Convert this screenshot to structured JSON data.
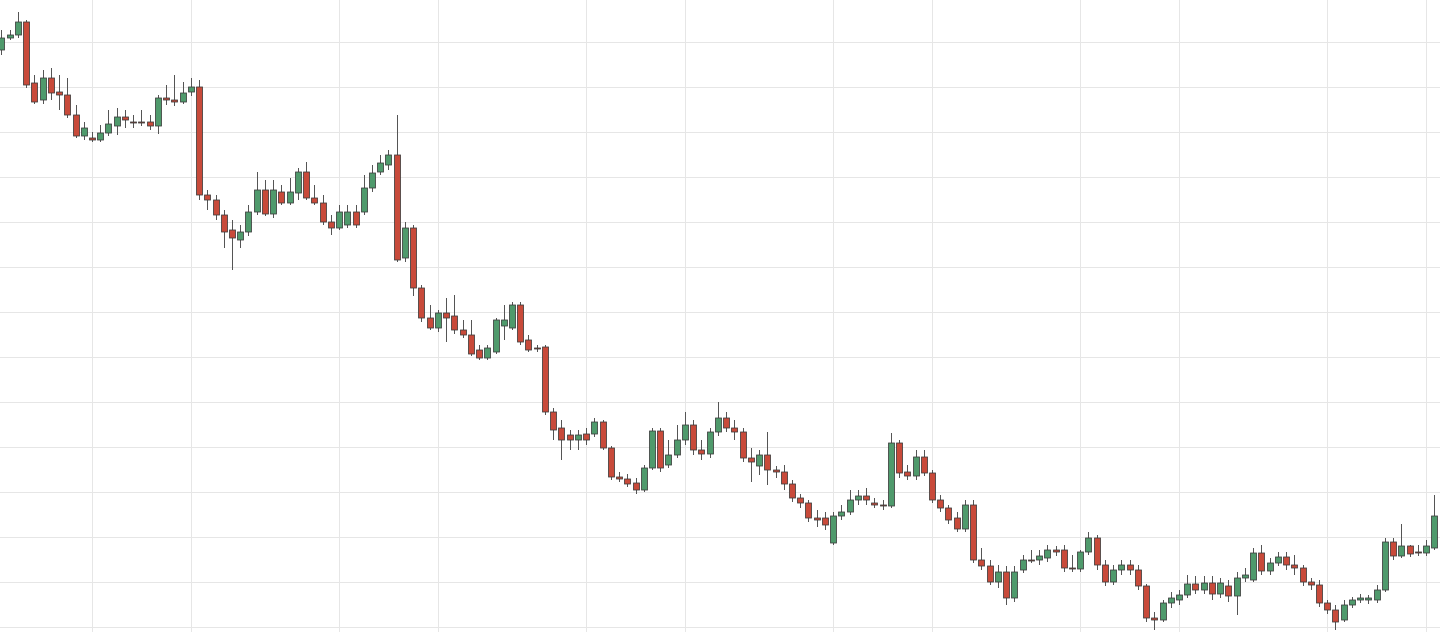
{
  "chart_data": {
    "type": "candlestick",
    "categories": [
      null,
      null,
      null,
      null,
      null,
      null,
      null,
      null,
      null,
      null,
      null,
      null,
      null,
      null,
      null,
      null,
      null,
      null,
      null,
      null,
      null,
      null,
      null,
      null,
      null,
      null,
      null,
      null,
      null,
      null,
      null,
      null,
      null,
      null,
      null,
      null,
      null,
      null,
      null,
      null,
      null,
      null,
      null,
      null,
      null,
      null,
      null,
      null,
      null,
      null,
      null,
      null,
      null,
      null,
      null,
      null,
      null,
      null,
      null,
      null,
      null,
      null,
      null,
      null,
      null,
      null,
      null,
      null,
      null,
      null,
      null,
      null,
      null,
      null,
      null,
      null,
      null,
      null,
      null,
      null,
      null,
      null,
      null,
      null,
      null,
      null,
      null,
      null,
      null,
      null,
      null,
      null,
      null,
      null,
      null,
      null,
      null,
      null,
      null,
      null,
      null,
      null,
      null,
      null,
      null,
      null,
      null,
      null,
      null,
      null,
      null,
      null,
      null,
      null,
      null,
      null,
      null,
      null,
      null,
      null,
      null,
      null,
      null,
      null,
      null,
      null,
      null,
      null,
      null,
      null,
      null,
      null,
      null,
      null,
      null,
      null,
      null,
      null,
      null,
      null,
      null,
      null,
      null,
      null,
      null,
      null,
      null,
      null,
      null,
      null,
      null,
      null,
      null,
      null,
      null,
      null,
      null,
      null,
      null,
      null,
      null,
      null,
      null,
      null,
      null,
      null,
      null,
      null,
      null,
      null,
      null,
      null,
      null,
      null,
      null
    ],
    "open": [
      582,
      594,
      597,
      610,
      549,
      532,
      554,
      540,
      537,
      517,
      496,
      494,
      492,
      499,
      506,
      515,
      510,
      510,
      510,
      506,
      534,
      532,
      530,
      540,
      545,
      437,
      432,
      417,
      402,
      392,
      400,
      420,
      442,
      418,
      440,
      429,
      439,
      460,
      434,
      429,
      410,
      404,
      407,
      420,
      420,
      444,
      460,
      467,
      477,
      374,
      404,
      344,
      314,
      304,
      319,
      316,
      302,
      297,
      282,
      274,
      280,
      306,
      304,
      327,
      292,
      284,
      285,
      220,
      204,
      197,
      192,
      198,
      198,
      210,
      184,
      155,
      153,
      149,
      142,
      164,
      201,
      167,
      177,
      192,
      207,
      182,
      178,
      200,
      214,
      204,
      200,
      174,
      166,
      177,
      162,
      160,
      148,
      134,
      129,
      114,
      114,
      89,
      116,
      120,
      132,
      136,
      129,
      127,
      126,
      189,
      160,
      156,
      175,
      159,
      132,
      124,
      114,
      103,
      127,
      72,
      66,
      50,
      60,
      34,
      62,
      72,
      72,
      74,
      82,
      82,
      64,
      63,
      80,
      94,
      67,
      50,
      62,
      67,
      62,
      46,
      14,
      12,
      29,
      32,
      37,
      48,
      42,
      49,
      38,
      46,
      36,
      54,
      52,
      79,
      61,
      69,
      75,
      67,
      64,
      50,
      47,
      29,
      22,
      12,
      27,
      32,
      32,
      32,
      42,
      90,
      76,
      86,
      80,
      79,
      84
    ],
    "high": [
      602,
      602,
      620,
      612,
      557,
      562,
      564,
      557,
      554,
      527,
      510,
      500,
      507,
      522,
      524,
      522,
      517,
      522,
      517,
      537,
      547,
      557,
      550,
      554,
      552,
      442,
      437,
      422,
      412,
      407,
      427,
      460,
      452,
      452,
      447,
      454,
      464,
      470,
      447,
      437,
      417,
      427,
      427,
      427,
      457,
      467,
      477,
      482,
      517,
      410,
      407,
      347,
      327,
      322,
      334,
      337,
      312,
      312,
      287,
      287,
      314,
      327,
      330,
      330,
      297,
      287,
      287,
      224,
      212,
      202,
      202,
      204,
      214,
      212,
      186,
      160,
      158,
      154,
      167,
      204,
      204,
      192,
      207,
      220,
      212,
      192,
      204,
      230,
      220,
      212,
      204,
      184,
      182,
      200,
      166,
      167,
      152,
      138,
      132,
      122,
      120,
      120,
      127,
      142,
      142,
      144,
      134,
      132,
      199,
      192,
      167,
      182,
      182,
      162,
      137,
      127,
      120,
      132,
      132,
      84,
      72,
      67,
      66,
      66,
      77,
      82,
      82,
      87,
      86,
      87,
      77,
      82,
      100,
      97,
      72,
      67,
      72,
      72,
      67,
      48,
      20,
      32,
      40,
      42,
      57,
      56,
      56,
      56,
      54,
      52,
      60,
      64,
      84,
      87,
      74,
      80,
      80,
      77,
      67,
      54,
      52,
      32,
      27,
      32,
      35,
      38,
      37,
      47,
      94,
      94,
      108,
      87,
      87,
      92,
      137
    ],
    "low": [
      577,
      592,
      594,
      544,
      528,
      528,
      532,
      522,
      514,
      494,
      492,
      490,
      490,
      496,
      497,
      504,
      504,
      506,
      502,
      498,
      527,
      526,
      528,
      536,
      432,
      422,
      412,
      384,
      362,
      384,
      396,
      417,
      416,
      414,
      427,
      427,
      432,
      432,
      427,
      407,
      397,
      402,
      404,
      404,
      417,
      440,
      457,
      462,
      370,
      370,
      336,
      310,
      302,
      300,
      290,
      298,
      294,
      276,
      272,
      272,
      278,
      292,
      302,
      287,
      280,
      280,
      217,
      192,
      172,
      182,
      182,
      187,
      195,
      182,
      152,
      150,
      145,
      138,
      140,
      162,
      160,
      164,
      174,
      187,
      177,
      172,
      174,
      196,
      200,
      192,
      170,
      150,
      157,
      147,
      154,
      142,
      130,
      124,
      110,
      105,
      102,
      87,
      112,
      117,
      127,
      127,
      124,
      122,
      124,
      154,
      152,
      152,
      156,
      129,
      120,
      108,
      100,
      100,
      69,
      62,
      47,
      44,
      27,
      30,
      59,
      69,
      67,
      70,
      76,
      60,
      60,
      60,
      77,
      62,
      46,
      47,
      57,
      57,
      42,
      10,
      2,
      10,
      24,
      27,
      34,
      38,
      38,
      32,
      34,
      30,
      17,
      50,
      50,
      57,
      57,
      66,
      62,
      57,
      46,
      42,
      25,
      18,
      2,
      10,
      24,
      29,
      28,
      29,
      40,
      72,
      74,
      75,
      76,
      76,
      82
    ],
    "close": [
      594,
      597,
      610,
      547,
      530,
      554,
      539,
      537,
      517,
      496,
      504,
      492,
      499,
      508,
      515,
      512,
      509,
      509,
      506,
      534,
      532,
      530,
      539,
      545,
      437,
      432,
      417,
      400,
      394,
      400,
      420,
      442,
      418,
      442,
      429,
      440,
      460,
      434,
      429,
      410,
      404,
      420,
      420,
      407,
      444,
      459,
      469,
      477,
      372,
      404,
      344,
      314,
      304,
      319,
      314,
      302,
      297,
      278,
      274,
      284,
      312,
      312,
      327,
      290,
      282,
      283,
      220,
      202,
      192,
      192,
      197,
      192,
      210,
      184,
      155,
      153,
      148,
      142,
      164,
      201,
      164,
      177,
      192,
      207,
      182,
      178,
      200,
      214,
      204,
      200,
      174,
      170,
      177,
      162,
      160,
      148,
      134,
      129,
      114,
      112,
      107,
      116,
      120,
      132,
      136,
      132,
      127,
      126,
      189,
      159,
      156,
      175,
      159,
      132,
      124,
      112,
      103,
      127,
      72,
      66,
      50,
      60,
      34,
      60,
      72,
      71,
      76,
      82,
      80,
      64,
      63,
      80,
      94,
      67,
      50,
      62,
      67,
      62,
      46,
      14,
      12,
      29,
      34,
      37,
      48,
      42,
      49,
      38,
      49,
      36,
      54,
      57,
      79,
      61,
      69,
      75,
      67,
      64,
      50,
      47,
      29,
      22,
      10,
      27,
      32,
      34,
      34,
      42,
      90,
      76,
      86,
      78,
      79,
      86,
      116
    ],
    "up_color": "#4f9a6c",
    "down_color": "#c84a3a",
    "xlim": [
      -0.17,
      174.69
    ],
    "xticks": [
      11,
      23,
      41,
      53,
      71,
      83,
      101,
      113,
      131,
      143,
      161,
      173
    ],
    "ylim": [
      0,
      632
    ],
    "yticks": [
      5,
      50,
      95,
      140,
      185,
      230,
      275,
      320,
      365,
      410,
      455,
      500,
      545,
      590
    ],
    "grid": true
  }
}
